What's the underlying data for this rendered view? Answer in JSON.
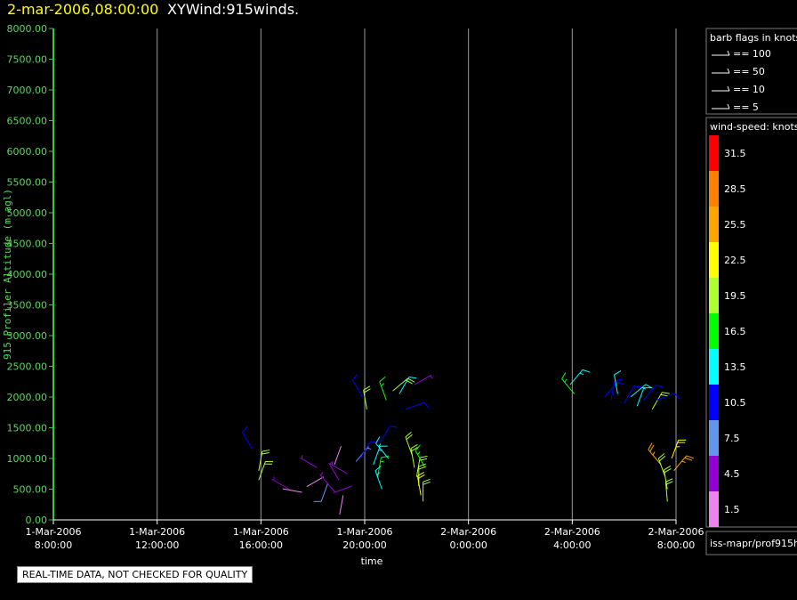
{
  "header": {
    "time": "2-mar-2006,08:00:00",
    "name": "XYWind:915winds."
  },
  "footer_note": "REAL-TIME DATA, NOT CHECKED FOR QUALITY",
  "source_label": "iss-mapr/prof915h",
  "colors": {
    "background": "#000000",
    "axis": "#33cc33",
    "grid": "#999999",
    "title_time": "#ffff00"
  },
  "chart_data": {
    "type": "scatter",
    "title": "XYWind:915winds.",
    "xlabel": "time",
    "ylabel": "915 Profiler Altitude (m agl)",
    "ylim": [
      0,
      8000
    ],
    "yticks": [
      "0.00",
      "500.00",
      "1000.00",
      "1500.00",
      "2000.00",
      "2500.00",
      "3000.00",
      "3500.00",
      "4000.00",
      "4500.00",
      "5000.00",
      "5500.00",
      "6000.00",
      "6500.00",
      "7000.00",
      "7500.00",
      "8000.00"
    ],
    "xlim": [
      "2006-03-01T08:00:00",
      "2006-03-02T08:00:00"
    ],
    "xticks": [
      {
        "date": "1-Mar-2006",
        "time": "8:00:00"
      },
      {
        "date": "1-Mar-2006",
        "time": "12:00:00"
      },
      {
        "date": "1-Mar-2006",
        "time": "16:00:00"
      },
      {
        "date": "1-Mar-2006",
        "time": "20:00:00"
      },
      {
        "date": "2-Mar-2006",
        "time": "0:00:00"
      },
      {
        "date": "2-Mar-2006",
        "time": "4:00:00"
      },
      {
        "date": "2-Mar-2006",
        "time": "8:00:00"
      }
    ],
    "grid": true,
    "barb_legend": {
      "title": "barb flags in knots",
      "entries": [
        {
          "label": "== 100"
        },
        {
          "label": "== 50"
        },
        {
          "label": "== 10"
        },
        {
          "label": "== 5"
        }
      ]
    },
    "speed_legend": {
      "title": "wind-speed: knots",
      "bins": [
        {
          "label": "31.5",
          "color": "#ff0000"
        },
        {
          "label": "28.5",
          "color": "#ff8000"
        },
        {
          "label": "25.5",
          "color": "#ffa500"
        },
        {
          "label": "22.5",
          "color": "#ffff00"
        },
        {
          "label": "19.5",
          "color": "#adff2f"
        },
        {
          "label": "16.5",
          "color": "#00ff00"
        },
        {
          "label": "13.5",
          "color": "#00ffff"
        },
        {
          "label": "10.5",
          "color": "#0000ff"
        },
        {
          "label": "7.5",
          "color": "#6495ed"
        },
        {
          "label": "4.5",
          "color": "#9400d3"
        },
        {
          "label": "1.5",
          "color": "#ee82ee"
        }
      ]
    },
    "barbs": [
      {
        "x": "2006-03-01T15:40:00",
        "alt": 1150,
        "speed": 10,
        "dir": 330
      },
      {
        "x": "2006-03-01T15:55:00",
        "alt": 800,
        "speed": 18,
        "dir": 10
      },
      {
        "x": "2006-03-01T15:55:00",
        "alt": 650,
        "speed": 18,
        "dir": 20
      },
      {
        "x": "2006-03-01T17:05:00",
        "alt": 500,
        "speed": 4,
        "dir": 300
      },
      {
        "x": "2006-03-01T17:35:00",
        "alt": 450,
        "speed": 2,
        "dir": 280
      },
      {
        "x": "2006-03-01T18:10:00",
        "alt": 850,
        "speed": 3,
        "dir": 300
      },
      {
        "x": "2006-03-01T18:25:00",
        "alt": 700,
        "speed": 2,
        "dir": 240
      },
      {
        "x": "2006-03-01T18:35:00",
        "alt": 600,
        "speed": 8,
        "dir": 200
      },
      {
        "x": "2006-03-01T18:45:00",
        "alt": 500,
        "speed": 3,
        "dir": 320
      },
      {
        "x": "2006-03-01T18:50:00",
        "alt": 900,
        "speed": 2,
        "dir": 20
      },
      {
        "x": "2006-03-01T19:00:00",
        "alt": 650,
        "speed": 4,
        "dir": 330
      },
      {
        "x": "2006-03-01T19:10:00",
        "alt": 400,
        "speed": 2,
        "dir": 190
      },
      {
        "x": "2006-03-01T19:20:00",
        "alt": 750,
        "speed": 5,
        "dir": 300
      },
      {
        "x": "2006-03-01T19:30:00",
        "alt": 550,
        "speed": 3,
        "dir": 250
      },
      {
        "x": "2006-03-01T19:40:00",
        "alt": 950,
        "speed": 6,
        "dir": 40
      },
      {
        "x": "2006-03-01T19:50:00",
        "alt": 1000,
        "speed": 10,
        "dir": 30
      },
      {
        "x": "2006-03-01T19:55:00",
        "alt": 2000,
        "speed": 9,
        "dir": 330
      },
      {
        "x": "2006-03-01T20:05:00",
        "alt": 1800,
        "speed": 20,
        "dir": 350
      },
      {
        "x": "2006-03-01T20:20:00",
        "alt": 900,
        "speed": 14,
        "dir": 20
      },
      {
        "x": "2006-03-01T20:30:00",
        "alt": 700,
        "speed": 16,
        "dir": 10
      },
      {
        "x": "2006-03-01T20:35:00",
        "alt": 1250,
        "speed": 11,
        "dir": 30
      },
      {
        "x": "2006-03-01T20:40:00",
        "alt": 500,
        "speed": 13,
        "dir": 340
      },
      {
        "x": "2006-03-01T20:50:00",
        "alt": 1950,
        "speed": 17,
        "dir": 340
      },
      {
        "x": "2006-03-01T20:55:00",
        "alt": 1000,
        "speed": 14,
        "dir": 320
      },
      {
        "x": "2006-03-01T21:05:00",
        "alt": 2100,
        "speed": 19,
        "dir": 50
      },
      {
        "x": "2006-03-01T21:20:00",
        "alt": 2050,
        "speed": 12,
        "dir": 30
      },
      {
        "x": "2006-03-01T21:35:00",
        "alt": 1800,
        "speed": 11,
        "dir": 70
      },
      {
        "x": "2006-03-01T21:55:00",
        "alt": 2200,
        "speed": 4,
        "dir": 60
      },
      {
        "x": "2006-03-01T21:50:00",
        "alt": 1050,
        "speed": 19,
        "dir": 340
      },
      {
        "x": "2006-03-01T21:55:00",
        "alt": 850,
        "speed": 18,
        "dir": 350
      },
      {
        "x": "2006-03-01T22:00:00",
        "alt": 700,
        "speed": 20,
        "dir": 10
      },
      {
        "x": "2006-03-01T22:05:00",
        "alt": 550,
        "speed": 19,
        "dir": 0
      },
      {
        "x": "2006-03-01T22:10:00",
        "alt": 400,
        "speed": 22,
        "dir": 350
      },
      {
        "x": "2006-03-01T22:15:00",
        "alt": 300,
        "speed": 20,
        "dir": 0
      },
      {
        "x": "2006-03-01T22:20:00",
        "alt": 850,
        "speed": 16,
        "dir": 330
      },
      {
        "x": "2006-03-02T03:55:00",
        "alt": 2200,
        "speed": 13,
        "dir": 40
      },
      {
        "x": "2006-03-02T04:05:00",
        "alt": 2050,
        "speed": 16,
        "dir": 320
      },
      {
        "x": "2006-03-02T05:15:00",
        "alt": 2000,
        "speed": 11,
        "dir": 40
      },
      {
        "x": "2006-03-02T05:30:00",
        "alt": 1950,
        "speed": 9,
        "dir": 10
      },
      {
        "x": "2006-03-02T05:45:00",
        "alt": 2050,
        "speed": 12,
        "dir": 350
      },
      {
        "x": "2006-03-02T06:00:00",
        "alt": 1900,
        "speed": 10,
        "dir": 30
      },
      {
        "x": "2006-03-02T06:15:00",
        "alt": 2000,
        "speed": 13,
        "dir": 50
      },
      {
        "x": "2006-03-02T06:30:00",
        "alt": 1850,
        "speed": 12,
        "dir": 20
      },
      {
        "x": "2006-03-02T06:45:00",
        "alt": 1950,
        "speed": 11,
        "dir": 40
      },
      {
        "x": "2006-03-02T07:05:00",
        "alt": 1800,
        "speed": 20,
        "dir": 30
      },
      {
        "x": "2006-03-02T07:15:00",
        "alt": 1950,
        "speed": 9,
        "dir": 70
      },
      {
        "x": "2006-03-02T07:25:00",
        "alt": 900,
        "speed": 24,
        "dir": 320
      },
      {
        "x": "2006-03-02T07:35:00",
        "alt": 700,
        "speed": 20,
        "dir": 340
      },
      {
        "x": "2006-03-02T07:40:00",
        "alt": 500,
        "speed": 18,
        "dir": 350
      },
      {
        "x": "2006-03-02T07:40:00",
        "alt": 300,
        "speed": 19,
        "dir": 355
      },
      {
        "x": "2006-03-02T07:50:00",
        "alt": 1000,
        "speed": 23,
        "dir": 20
      },
      {
        "x": "2006-03-02T07:55:00",
        "alt": 800,
        "speed": 25,
        "dir": 40
      }
    ]
  }
}
